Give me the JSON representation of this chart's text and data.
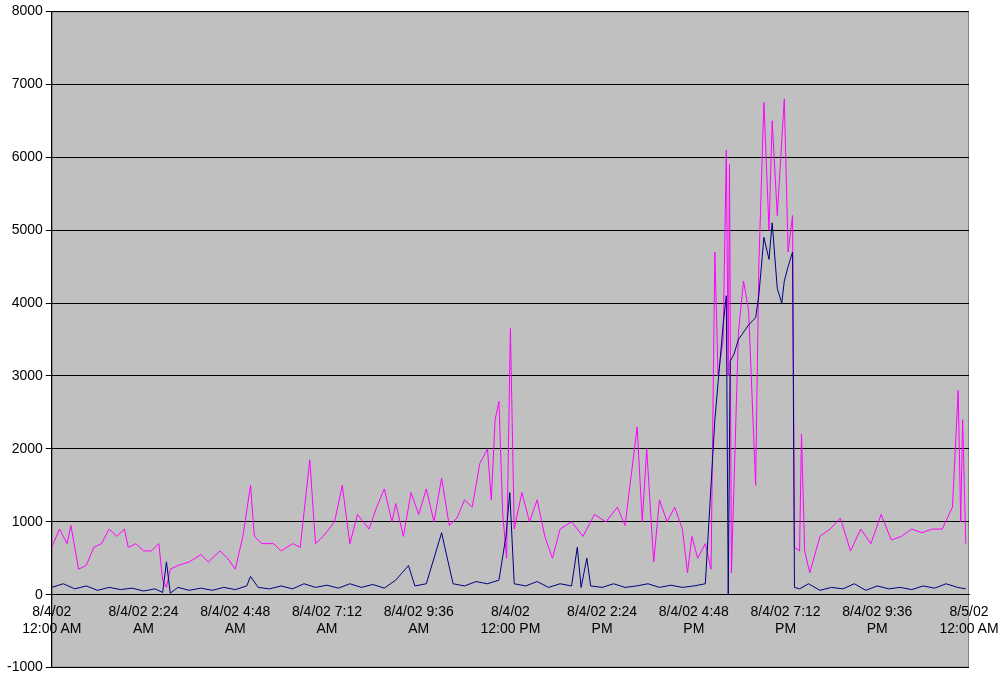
{
  "chart_data": {
    "type": "line",
    "xlim": [
      "--08-04T00:00",
      "--08-05T00:00"
    ],
    "ylim": [
      -1000,
      8000
    ],
    "xticks": [
      {
        "value": "--08-04T00:00",
        "label": "8/4/02 12:00 AM"
      },
      {
        "value": "--08-04T02:24",
        "label": "8/4/02 2:24 AM"
      },
      {
        "value": "--08-04T04:48",
        "label": "8/4/02 4:48 AM"
      },
      {
        "value": "--08-04T07:12",
        "label": "8/4/02 7:12 AM"
      },
      {
        "value": "--08-04T09:36",
        "label": "8/4/02 9:36 AM"
      },
      {
        "value": "--08-04T12:00",
        "label": "8/4/02 12:00 PM"
      },
      {
        "value": "--08-04T14:24",
        "label": "8/4/02 2:24 PM"
      },
      {
        "value": "--08-04T16:48",
        "label": "8/4/02 4:48 PM"
      },
      {
        "value": "--08-04T19:12",
        "label": "8/4/02 7:12 PM"
      },
      {
        "value": "--08-04T21:36",
        "label": "8/4/02 9:36 PM"
      },
      {
        "value": "--08-05T00:00",
        "label": "8/5/02 12:00 AM"
      }
    ],
    "yticks": [
      -1000,
      0,
      1000,
      2000,
      3000,
      4000,
      5000,
      6000,
      7000,
      8000
    ],
    "grid": "y",
    "legend": false,
    "marker": "none",
    "line_style": "solid",
    "series": [
      {
        "color": "#ff00ff",
        "x": [
          "--08-04T00:00",
          "--08-04T00:12",
          "--08-04T00:24",
          "--08-04T00:30",
          "--08-04T00:42",
          "--08-04T00:54",
          "--08-04T01:06",
          "--08-04T01:18",
          "--08-04T01:30",
          "--08-04T01:42",
          "--08-04T01:54",
          "--08-04T02:00",
          "--08-04T02:12",
          "--08-04T02:24",
          "--08-04T02:36",
          "--08-04T02:48",
          "--08-04T02:54",
          "--08-04T03:00",
          "--08-04T03:06",
          "--08-04T03:18",
          "--08-04T03:36",
          "--08-04T03:54",
          "--08-04T04:06",
          "--08-04T04:24",
          "--08-04T04:36",
          "--08-04T04:48",
          "--08-04T05:00",
          "--08-04T05:12",
          "--08-04T05:18",
          "--08-04T05:30",
          "--08-04T05:48",
          "--08-04T06:00",
          "--08-04T06:18",
          "--08-04T06:30",
          "--08-04T06:45",
          "--08-04T06:54",
          "--08-04T07:06",
          "--08-04T07:24",
          "--08-04T07:36",
          "--08-04T07:48",
          "--08-04T08:00",
          "--08-04T08:18",
          "--08-04T08:30",
          "--08-04T08:42",
          "--08-04T08:54",
          "--08-04T09:00",
          "--08-04T09:12",
          "--08-04T09:24",
          "--08-04T09:36",
          "--08-04T09:48",
          "--08-04T10:00",
          "--08-04T10:12",
          "--08-04T10:24",
          "--08-04T10:36",
          "--08-04T10:48",
          "--08-04T11:00",
          "--08-04T11:12",
          "--08-04T11:24",
          "--08-04T11:30",
          "--08-04T11:36",
          "--08-04T11:42",
          "--08-04T11:48",
          "--08-04T11:54",
          "--08-04T12:00",
          "--08-04T12:06",
          "--08-04T12:18",
          "--08-04T12:30",
          "--08-04T12:42",
          "--08-04T12:54",
          "--08-04T13:06",
          "--08-04T13:18",
          "--08-04T13:36",
          "--08-04T13:54",
          "--08-04T14:12",
          "--08-04T14:30",
          "--08-04T14:48",
          "--08-04T15:00",
          "--08-04T15:19",
          "--08-04T15:27",
          "--08-04T15:34",
          "--08-04T15:45",
          "--08-04T15:54",
          "--08-04T16:06",
          "--08-04T16:18",
          "--08-04T16:30",
          "--08-04T16:38",
          "--08-04T16:45",
          "--08-04T16:54",
          "--08-04T17:06",
          "--08-04T17:15",
          "--08-04T17:21",
          "--08-04T17:26",
          "--08-04T17:34",
          "--08-04T17:39",
          "--08-04T17:42",
          "--08-04T17:44",
          "--08-04T17:47",
          "--08-04T17:58",
          "--08-04T18:06",
          "--08-04T18:14",
          "--08-04T18:25",
          "--08-04T18:30",
          "--08-04T18:38",
          "--08-04T18:46",
          "--08-04T18:51",
          "--08-04T18:59",
          "--08-04T19:10",
          "--08-04T19:16",
          "--08-04T19:23",
          "--08-04T19:26",
          "--08-04T19:34",
          "--08-04T19:37",
          "--08-04T19:42",
          "--08-04T19:50",
          "--08-04T20:06",
          "--08-04T20:22",
          "--08-04T20:38",
          "--08-04T20:54",
          "--08-04T21:10",
          "--08-04T21:26",
          "--08-04T21:42",
          "--08-04T21:58",
          "--08-04T22:14",
          "--08-04T22:30",
          "--08-04T22:46",
          "--08-04T23:02",
          "--08-04T23:18",
          "--08-04T23:34",
          "--08-04T23:43",
          "--08-04T23:47",
          "--08-04T23:50",
          "--08-04T23:55"
        ],
        "values": [
          650,
          900,
          700,
          950,
          350,
          400,
          650,
          700,
          900,
          800,
          900,
          650,
          700,
          600,
          600,
          700,
          200,
          100,
          350,
          400,
          450,
          550,
          450,
          600,
          500,
          350,
          800,
          1500,
          800,
          700,
          700,
          600,
          700,
          650,
          1850,
          700,
          800,
          1000,
          1500,
          700,
          1100,
          900,
          1200,
          1450,
          1000,
          1250,
          800,
          1400,
          1100,
          1450,
          1000,
          1600,
          950,
          1050,
          1300,
          1200,
          1800,
          2000,
          1300,
          2400,
          2650,
          1100,
          500,
          3650,
          900,
          1400,
          1000,
          1300,
          800,
          500,
          900,
          1000,
          800,
          1100,
          1000,
          1200,
          950,
          2300,
          1000,
          2000,
          450,
          1300,
          1000,
          1200,
          900,
          300,
          800,
          500,
          700,
          350,
          4700,
          3000,
          3500,
          6100,
          3000,
          5900,
          300,
          3600,
          4300,
          3900,
          1500,
          4500,
          6750,
          5000,
          6500,
          5200,
          6800,
          4700,
          5200,
          650,
          600,
          2200,
          600,
          300,
          800,
          900,
          1050,
          600,
          900,
          700,
          1100,
          750,
          800,
          900,
          850,
          900,
          900,
          1200,
          2800,
          1000,
          2400,
          700
        ]
      },
      {
        "color": "#000080",
        "x": [
          "--08-04T00:00",
          "--08-04T00:18",
          "--08-04T00:36",
          "--08-04T00:54",
          "--08-04T01:12",
          "--08-04T01:30",
          "--08-04T01:48",
          "--08-04T02:06",
          "--08-04T02:24",
          "--08-04T02:42",
          "--08-04T02:54",
          "--08-04T03:00",
          "--08-04T03:06",
          "--08-04T03:18",
          "--08-04T03:36",
          "--08-04T03:54",
          "--08-04T04:12",
          "--08-04T04:30",
          "--08-04T04:48",
          "--08-04T05:06",
          "--08-04T05:12",
          "--08-04T05:24",
          "--08-04T05:42",
          "--08-04T06:00",
          "--08-04T06:18",
          "--08-04T06:36",
          "--08-04T06:54",
          "--08-04T07:12",
          "--08-04T07:30",
          "--08-04T07:48",
          "--08-04T08:06",
          "--08-04T08:24",
          "--08-04T08:42",
          "--08-04T09:00",
          "--08-04T09:20",
          "--08-04T09:30",
          "--08-04T09:48",
          "--08-04T10:12",
          "--08-04T10:17",
          "--08-04T10:30",
          "--08-04T10:48",
          "--08-04T11:06",
          "--08-04T11:24",
          "--08-04T11:42",
          "--08-04T11:53",
          "--08-04T11:59",
          "--08-04T12:06",
          "--08-04T12:24",
          "--08-04T12:42",
          "--08-04T13:00",
          "--08-04T13:18",
          "--08-04T13:36",
          "--08-04T13:45",
          "--08-04T13:51",
          "--08-04T14:00",
          "--08-04T14:06",
          "--08-04T14:24",
          "--08-04T14:42",
          "--08-04T15:00",
          "--08-04T15:18",
          "--08-04T15:36",
          "--08-04T15:54",
          "--08-04T16:12",
          "--08-04T16:30",
          "--08-04T16:48",
          "--08-04T17:06",
          "--08-04T17:21",
          "--08-04T17:26",
          "--08-04T17:34",
          "--08-04T17:39",
          "--08-04T17:42",
          "--08-04T17:45",
          "--08-04T17:51",
          "--08-04T17:58",
          "--08-04T18:14",
          "--08-04T18:25",
          "--08-04T18:30",
          "--08-04T18:38",
          "--08-04T18:46",
          "--08-04T18:51",
          "--08-04T18:59",
          "--08-04T19:06",
          "--08-04T19:10",
          "--08-04T19:16",
          "--08-04T19:23",
          "--08-04T19:26",
          "--08-04T19:34",
          "--08-04T19:48",
          "--08-04T20:06",
          "--08-04T20:24",
          "--08-04T20:42",
          "--08-04T21:00",
          "--08-04T21:18",
          "--08-04T21:36",
          "--08-04T21:54",
          "--08-04T22:12",
          "--08-04T22:30",
          "--08-04T22:48",
          "--08-04T23:06",
          "--08-04T23:24",
          "--08-04T23:42",
          "--08-04T23:55"
        ],
        "values": [
          100,
          150,
          80,
          120,
          60,
          100,
          70,
          90,
          50,
          80,
          30,
          450,
          20,
          100,
          60,
          90,
          60,
          100,
          70,
          120,
          250,
          100,
          80,
          120,
          80,
          150,
          100,
          130,
          90,
          150,
          100,
          140,
          90,
          200,
          400,
          120,
          150,
          850,
          650,
          150,
          120,
          180,
          150,
          200,
          800,
          1400,
          150,
          120,
          180,
          100,
          150,
          120,
          650,
          100,
          500,
          120,
          100,
          150,
          100,
          120,
          150,
          100,
          130,
          100,
          120,
          150,
          2400,
          2900,
          3700,
          4100,
          0,
          3200,
          3300,
          3500,
          3700,
          3800,
          4100,
          4900,
          4600,
          5100,
          4200,
          4000,
          4300,
          4500,
          4700,
          100,
          80,
          150,
          60,
          100,
          80,
          150,
          60,
          120,
          80,
          100,
          70,
          120,
          90,
          150,
          100,
          80
        ]
      }
    ]
  }
}
